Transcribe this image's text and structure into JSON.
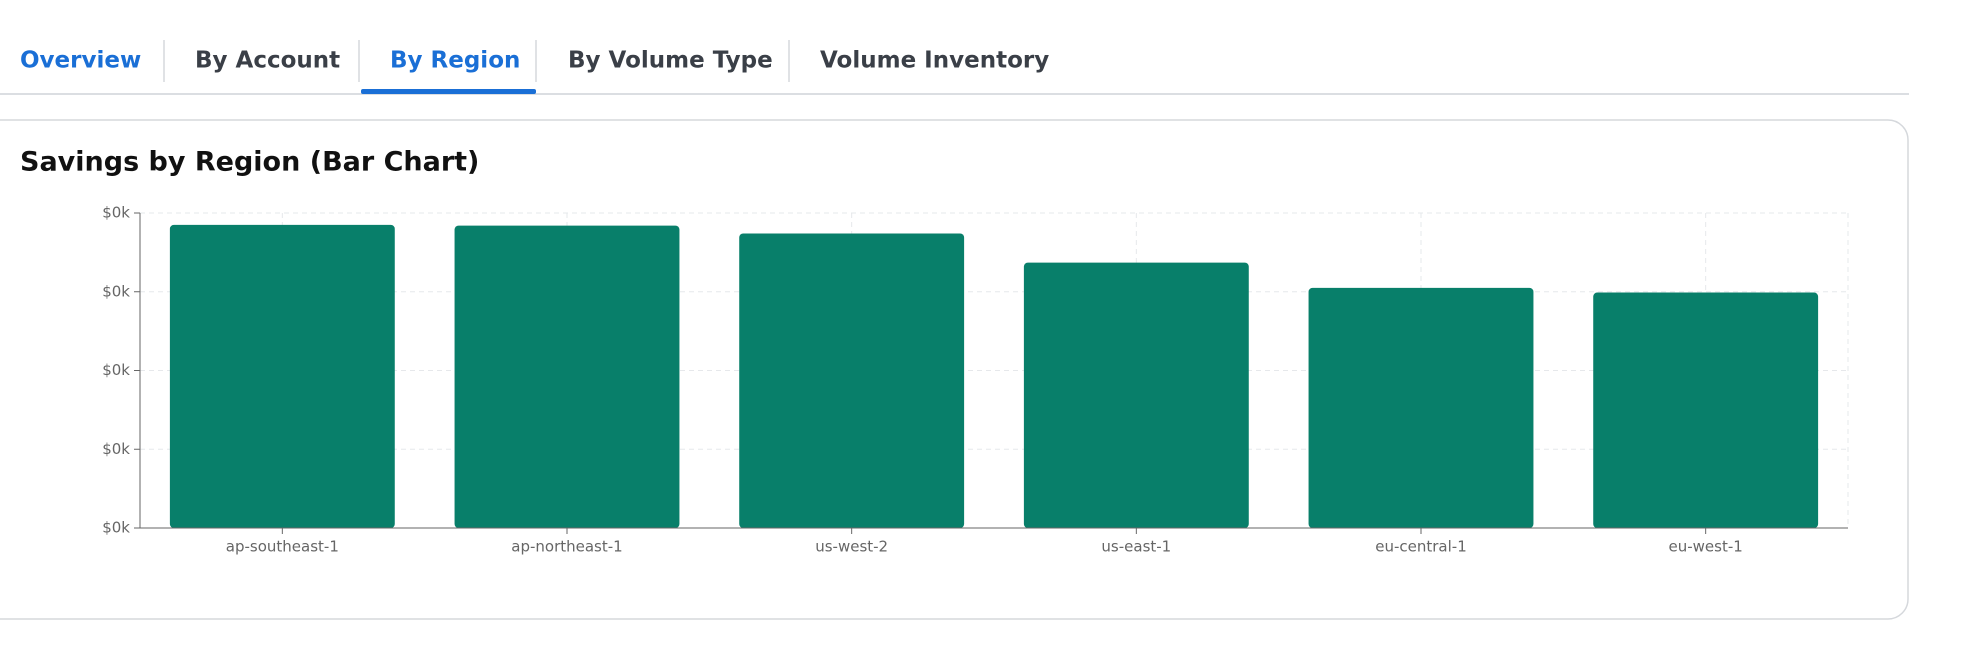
{
  "tabs": [
    "Overview",
    "By Account",
    "By Region",
    "By Volume Type",
    "Volume Inventory"
  ],
  "chart_data": {
    "type": "bar",
    "title": "Savings by Region (Bar Chart)",
    "categories": [
      "ap-southeast-1",
      "ap-northeast-1",
      "us-west-2",
      "us-east-1",
      "eu-central-1",
      "eu-west-1"
    ],
    "values": [
      385,
      384,
      374,
      337,
      305,
      299
    ],
    "color": "#087f6a",
    "ylim": [
      0,
      400
    ],
    "yticks": [
      {
        "value": 0,
        "label": "$0k"
      },
      {
        "value": 100,
        "label": "$0k"
      },
      {
        "value": 200,
        "label": "$0k"
      },
      {
        "value": 300,
        "label": "$0k"
      },
      {
        "value": 400,
        "label": "$0k"
      }
    ],
    "grid": true
  }
}
